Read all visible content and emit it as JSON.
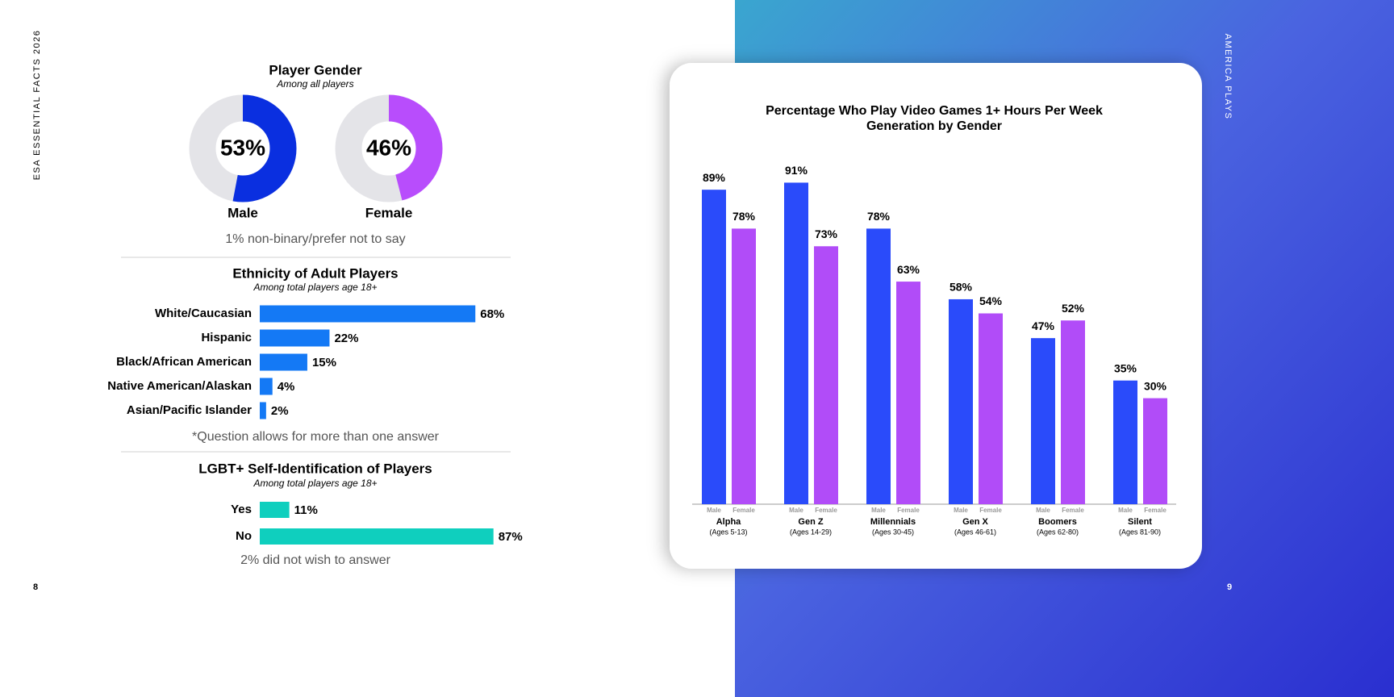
{
  "header": {
    "left_running_title": "ESA ESSENTIAL FACTS 2026",
    "right_running_title": "AMERICA PLAYS",
    "left_page_number": "8",
    "right_page_number": "9"
  },
  "chart_data": [
    {
      "type": "donut",
      "title": "Player Gender",
      "subtitle": "Among all players",
      "categories": [
        "Male",
        "Female"
      ],
      "values": [
        53,
        46
      ],
      "value_labels": [
        "53%",
        "46%"
      ],
      "colors": [
        "#0a2fe0",
        "#b84dfc"
      ],
      "remainder_color": "#e4e4e8",
      "note": "1% non-binary/prefer not to say"
    },
    {
      "type": "hbar",
      "title": "Ethnicity of Adult Players",
      "subtitle": "Among total players age 18+",
      "categories": [
        "White/Caucasian",
        "Hispanic",
        "Black/African American",
        "Native American/Alaskan",
        "Asian/Pacific Islander"
      ],
      "values": [
        68,
        22,
        15,
        4,
        2
      ],
      "value_labels": [
        "68%",
        "22%",
        "15%",
        "4%",
        "2%"
      ],
      "color": "#1479f5",
      "note": "*Question allows for more than one answer"
    },
    {
      "type": "hbar",
      "title": "LGBT+ Self-Identification of Players",
      "subtitle": "Among total players age 18+",
      "categories": [
        "Yes",
        "No"
      ],
      "values": [
        11,
        87
      ],
      "value_labels": [
        "11%",
        "87%"
      ],
      "color": "#0fcfbe",
      "note": "2% did not wish to answer"
    },
    {
      "type": "grouped_bar",
      "title": "Percentage Who Play Video Games 1+ Hours Per Week",
      "subtitle": "Generation by Gender",
      "categories": [
        "Alpha",
        "Gen Z",
        "Millennials",
        "Gen X",
        "Boomers",
        "Silent"
      ],
      "category_sublabels": [
        "(Ages 5-13)",
        "(Ages 14-29)",
        "(Ages 30-45)",
        "(Ages 46-61)",
        "(Ages 62-80)",
        "(Ages 81-90)"
      ],
      "series": [
        {
          "name": "Male",
          "color": "#2a4bfa",
          "values": [
            89,
            91,
            78,
            58,
            47,
            35
          ],
          "value_labels": [
            "89%",
            "91%",
            "78%",
            "58%",
            "47%",
            "35%"
          ]
        },
        {
          "name": "Female",
          "color": "#b14cf8",
          "values": [
            78,
            73,
            63,
            54,
            52,
            30
          ],
          "value_labels": [
            "78%",
            "73%",
            "63%",
            "54%",
            "52%",
            "30%"
          ]
        }
      ]
    }
  ]
}
